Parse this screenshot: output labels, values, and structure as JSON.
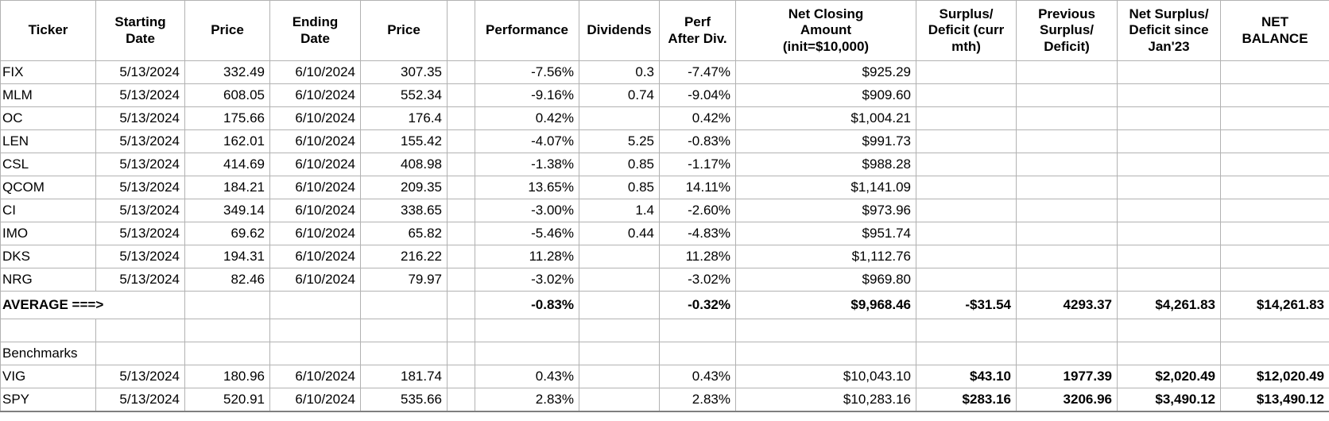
{
  "colors": {
    "background": "#ffffff",
    "grid_line": "#b2b2b2",
    "outer_bottom_border": "#7f7f7f",
    "text": "#000000"
  },
  "table": {
    "columns": [
      {
        "label": "Ticker"
      },
      {
        "label": "Starting\nDate"
      },
      {
        "label": "Price"
      },
      {
        "label": "Ending\nDate"
      },
      {
        "label": "Price"
      },
      {
        "label": ""
      },
      {
        "label": "Performance"
      },
      {
        "label": "Dividends"
      },
      {
        "label": "Perf\nAfter Div."
      },
      {
        "label": "Net Closing\nAmount\n(init=$10,000)"
      },
      {
        "label": "Surplus/\nDeficit (curr\nmth)"
      },
      {
        "label": "Previous\nSurplus/\nDeficit)"
      },
      {
        "label": "Net Surplus/\nDeficit since\nJan'23"
      },
      {
        "label": "NET\nBALANCE"
      }
    ],
    "rows": [
      {
        "name": "FIX",
        "cells": [
          "FIX",
          "5/13/2024",
          "332.49",
          "6/10/2024",
          "307.35",
          "",
          "-7.56%",
          "0.3",
          "-7.47%",
          "$925.29",
          "",
          "",
          "",
          ""
        ]
      },
      {
        "name": "MLM",
        "cells": [
          "MLM",
          "5/13/2024",
          "608.05",
          "6/10/2024",
          "552.34",
          "",
          "-9.16%",
          "0.74",
          "-9.04%",
          "$909.60",
          "",
          "",
          "",
          ""
        ]
      },
      {
        "name": "OC",
        "cells": [
          "OC",
          "5/13/2024",
          "175.66",
          "6/10/2024",
          "176.4",
          "",
          "0.42%",
          "",
          "0.42%",
          "$1,004.21",
          "",
          "",
          "",
          ""
        ]
      },
      {
        "name": "LEN",
        "cells": [
          "LEN",
          "5/13/2024",
          "162.01",
          "6/10/2024",
          "155.42",
          "",
          "-4.07%",
          "5.25",
          "-0.83%",
          "$991.73",
          "",
          "",
          "",
          ""
        ]
      },
      {
        "name": "CSL",
        "cells": [
          "CSL",
          "5/13/2024",
          "414.69",
          "6/10/2024",
          "408.98",
          "",
          "-1.38%",
          "0.85",
          "-1.17%",
          "$988.28",
          "",
          "",
          "",
          ""
        ]
      },
      {
        "name": "QCOM",
        "cells": [
          "QCOM",
          "5/13/2024",
          "184.21",
          "6/10/2024",
          "209.35",
          "",
          "13.65%",
          "0.85",
          "14.11%",
          "$1,141.09",
          "",
          "",
          "",
          ""
        ]
      },
      {
        "name": "CI",
        "cells": [
          "CI",
          "5/13/2024",
          "349.14",
          "6/10/2024",
          "338.65",
          "",
          "-3.00%",
          "1.4",
          "-2.60%",
          "$973.96",
          "",
          "",
          "",
          ""
        ]
      },
      {
        "name": "IMO",
        "cells": [
          "IMO",
          "5/13/2024",
          "69.62",
          "6/10/2024",
          "65.82",
          "",
          "-5.46%",
          "0.44",
          "-4.83%",
          "$951.74",
          "",
          "",
          "",
          ""
        ]
      },
      {
        "name": "DKS",
        "cells": [
          "DKS",
          "5/13/2024",
          "194.31",
          "6/10/2024",
          "216.22",
          "",
          "11.28%",
          "",
          "11.28%",
          "$1,112.76",
          "",
          "",
          "",
          ""
        ]
      },
      {
        "name": "NRG",
        "cells": [
          "NRG",
          "5/13/2024",
          "82.46",
          "6/10/2024",
          "79.97",
          "",
          "-3.02%",
          "",
          "-3.02%",
          "$969.80",
          "",
          "",
          "",
          ""
        ]
      },
      {
        "name": "average",
        "bold": true,
        "overflow_first": true,
        "cells": [
          "AVERAGE ===>",
          "",
          "",
          "",
          "",
          "",
          "-0.83%",
          "",
          "-0.32%",
          "$9,968.46",
          "-$31.54",
          "4293.37",
          "$4,261.83",
          "$14,261.83"
        ]
      },
      {
        "name": "blank",
        "cells": [
          "",
          "",
          "",
          "",
          "",
          "",
          "",
          "",
          "",
          "",
          "",
          "",
          "",
          ""
        ]
      },
      {
        "name": "benchmarks-label",
        "cells": [
          "Benchmarks",
          "",
          "",
          "",
          "",
          "",
          "",
          "",
          "",
          "",
          "",
          "",
          "",
          ""
        ]
      },
      {
        "name": "VIG",
        "bold_cols": [
          10,
          11,
          12,
          13
        ],
        "cells": [
          "VIG",
          "5/13/2024",
          "180.96",
          "6/10/2024",
          "181.74",
          "",
          "0.43%",
          "",
          "0.43%",
          "$10,043.10",
          "$43.10",
          "1977.39",
          "$2,020.49",
          "$12,020.49"
        ]
      },
      {
        "name": "SPY",
        "bold_cols": [
          10,
          11,
          12,
          13
        ],
        "cells": [
          "SPY",
          "5/13/2024",
          "520.91",
          "6/10/2024",
          "535.66",
          "",
          "2.83%",
          "",
          "2.83%",
          "$10,283.16",
          "$283.16",
          "3206.96",
          "$3,490.12",
          "$13,490.12"
        ]
      }
    ]
  }
}
